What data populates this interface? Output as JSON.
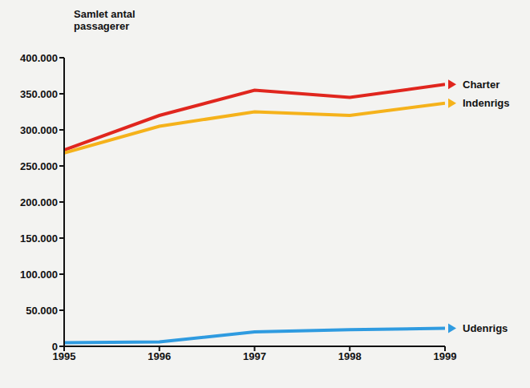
{
  "chart_data": {
    "type": "line",
    "y_label": "Samlet antal passagerer",
    "x": [
      1995,
      1996,
      1997,
      1998,
      1999
    ],
    "series": [
      {
        "name": "Charter",
        "color": "#e0261e",
        "values": [
          272000,
          320000,
          355000,
          345000,
          363000
        ]
      },
      {
        "name": "Indenrigs",
        "color": "#f5b21b",
        "values": [
          268000,
          305000,
          325000,
          320000,
          337000
        ]
      },
      {
        "name": "Udenrigs",
        "color": "#2f9be0",
        "values": [
          5000,
          6000,
          20000,
          23000,
          25000
        ]
      }
    ],
    "xlim": [
      1995,
      1999
    ],
    "xticks": [
      1995,
      1996,
      1997,
      1998,
      1999
    ],
    "ylim": [
      0,
      400000
    ],
    "yticks": [
      0,
      {
        "value": 50000,
        "label": "50.000"
      },
      {
        "value": 100000,
        "label": "100.000"
      },
      {
        "value": 150000,
        "label": "150.000"
      },
      {
        "value": 200000,
        "label": "200.000"
      },
      {
        "value": 250000,
        "label": "250.000"
      },
      {
        "value": 300000,
        "label": "300.000"
      },
      {
        "value": 350000,
        "label": "350.000"
      },
      {
        "value": 400000,
        "label": "400.000"
      }
    ],
    "grid": false
  }
}
